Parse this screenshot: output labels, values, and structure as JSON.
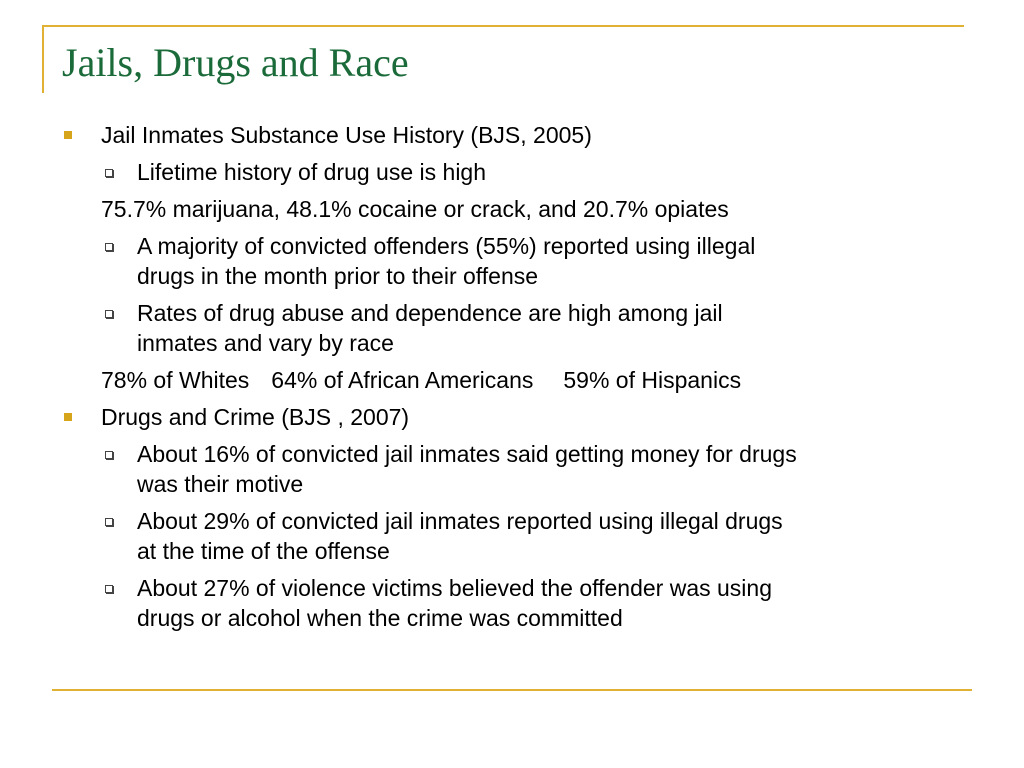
{
  "slide": {
    "title": "Jails, Drugs and Race",
    "accent_color": "#e0b133",
    "title_color": "#1b6b3a",
    "bullet_square_color": "#d7a51c"
  },
  "content": {
    "section1": {
      "heading": "Jail Inmates Substance Use History (BJS, 2005)",
      "item1": "Lifetime history of drug use is high",
      "stats_line": "75.7% marijuana, 48.1% cocaine or crack, and 20.7% opiates",
      "item2_line1": "A majority of convicted offenders (55%) reported using illegal",
      "item2_line2": "drugs in the month prior to their offense",
      "item3_line1": "Rates of drug abuse and dependence are high among jail",
      "item3_line2": "inmates and vary by race",
      "race_whites": "78% of Whites",
      "race_african_americans": "64% of African Americans",
      "race_hispanics": "59% of Hispanics"
    },
    "section2": {
      "heading": "Drugs and Crime (BJS , 2007)",
      "item1_line1": "About 16% of convicted jail inmates said getting money for drugs",
      "item1_line2": "was their motive",
      "item2_line1": "About 29% of convicted jail inmates reported using illegal drugs",
      "item2_line2": "at the time of the offense",
      "item3_line1": "About 27% of violence victims believed the offender was using",
      "item3_line2": "drugs or alcohol when the crime was committed"
    }
  }
}
